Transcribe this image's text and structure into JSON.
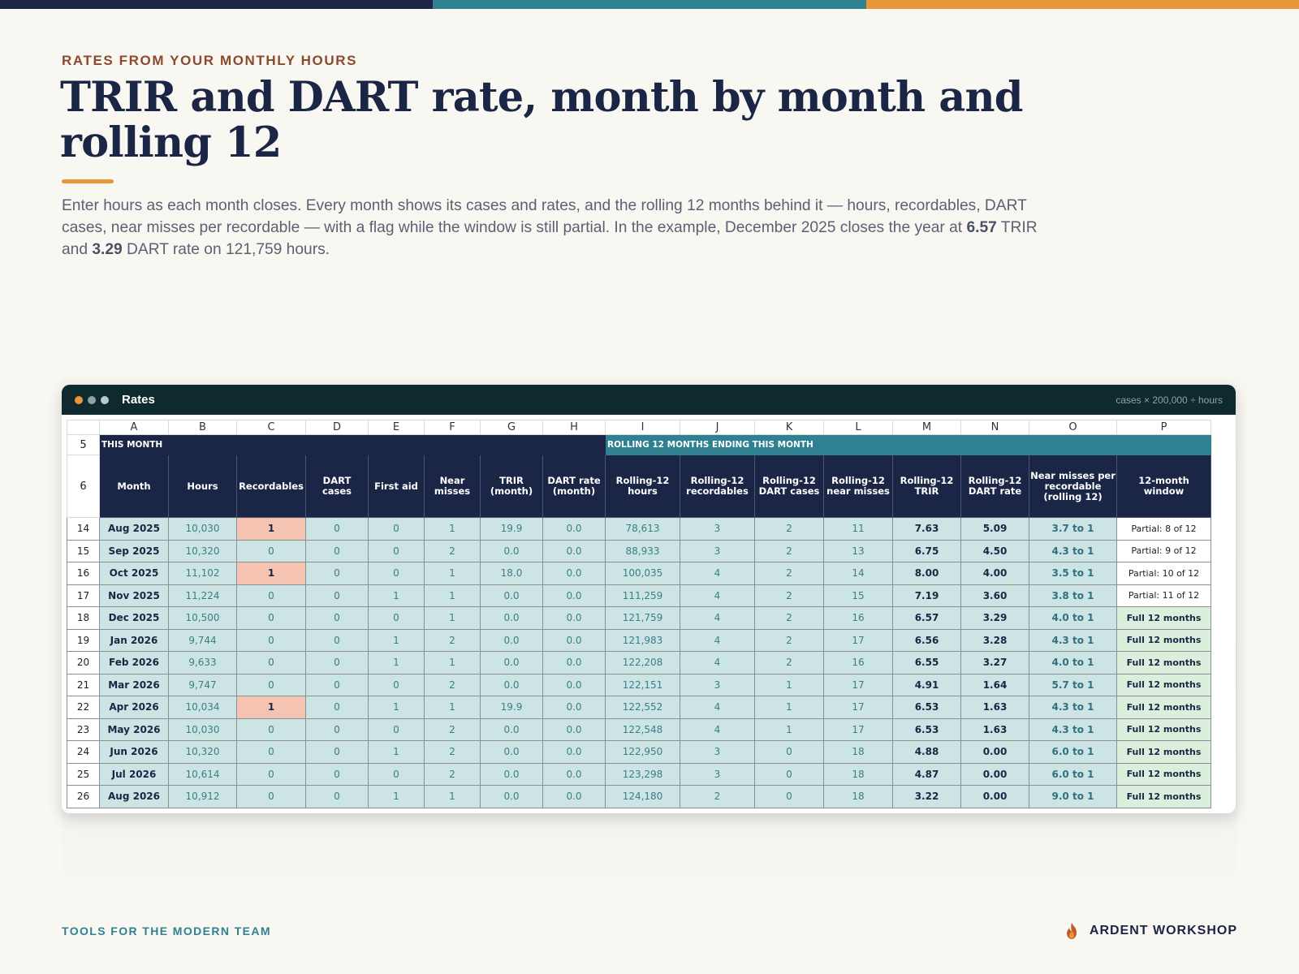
{
  "colors": {
    "navy": "#1b2545",
    "teal": "#2f8191",
    "orange": "#e9953a",
    "rust": "#8b4a2e"
  },
  "header": {
    "eyebrow": "RATES FROM YOUR MONTHLY HOURS",
    "title": "TRIR and DART rate, month by month and rolling 12",
    "intro_1": "Enter hours as each month closes. Every month shows its cases and rates, and the rolling 12 months behind it — hours, recordables, DART cases, near misses per recordable — with a flag while the window is still partial. In the example, December 2025 closes the year at ",
    "intro_trir": "6.57",
    "intro_2": " TRIR and ",
    "intro_dart": "3.29",
    "intro_3": " DART rate on 121,759 hours."
  },
  "window": {
    "title": "Rates",
    "formula": "cases × 200,000 ÷ hours"
  },
  "sheet": {
    "columns": [
      "A",
      "B",
      "C",
      "D",
      "E",
      "F",
      "G",
      "H",
      "I",
      "J",
      "K",
      "L",
      "M",
      "N",
      "O",
      "P"
    ],
    "section_row_num": "5",
    "section_a": "THIS MONTH",
    "section_b": "ROLLING 12 MONTHS ENDING THIS MONTH",
    "header_row_num": "6",
    "headers": [
      "Month",
      "Hours",
      "Recordables",
      "DART cases",
      "First aid",
      "Near misses",
      "TRIR (month)",
      "DART rate (month)",
      "Rolling-12 hours",
      "Rolling-12 recordables",
      "Rolling-12 DART cases",
      "Rolling-12 near misses",
      "Rolling-12 TRIR",
      "Rolling-12 DART rate",
      "Near misses per recordable (rolling 12)",
      "12-month window"
    ],
    "rows": [
      [
        "14",
        "Aug 2025",
        "10,030",
        "1",
        "0",
        "0",
        "1",
        "19.9",
        "0.0",
        "78,613",
        "3",
        "2",
        "11",
        "7.63",
        "5.09",
        "3.7 to 1",
        "Partial: 8 of 12"
      ],
      [
        "15",
        "Sep 2025",
        "10,320",
        "0",
        "0",
        "0",
        "2",
        "0.0",
        "0.0",
        "88,933",
        "3",
        "2",
        "13",
        "6.75",
        "4.50",
        "4.3 to 1",
        "Partial: 9 of 12"
      ],
      [
        "16",
        "Oct 2025",
        "11,102",
        "1",
        "0",
        "0",
        "1",
        "18.0",
        "0.0",
        "100,035",
        "4",
        "2",
        "14",
        "8.00",
        "4.00",
        "3.5 to 1",
        "Partial: 10 of 12"
      ],
      [
        "17",
        "Nov 2025",
        "11,224",
        "0",
        "0",
        "1",
        "1",
        "0.0",
        "0.0",
        "111,259",
        "4",
        "2",
        "15",
        "7.19",
        "3.60",
        "3.8 to 1",
        "Partial: 11 of 12"
      ],
      [
        "18",
        "Dec 2025",
        "10,500",
        "0",
        "0",
        "0",
        "1",
        "0.0",
        "0.0",
        "121,759",
        "4",
        "2",
        "16",
        "6.57",
        "3.29",
        "4.0 to 1",
        "Full 12 months"
      ],
      [
        "19",
        "Jan 2026",
        "9,744",
        "0",
        "0",
        "1",
        "2",
        "0.0",
        "0.0",
        "121,983",
        "4",
        "2",
        "17",
        "6.56",
        "3.28",
        "4.3 to 1",
        "Full 12 months"
      ],
      [
        "20",
        "Feb 2026",
        "9,633",
        "0",
        "0",
        "1",
        "1",
        "0.0",
        "0.0",
        "122,208",
        "4",
        "2",
        "16",
        "6.55",
        "3.27",
        "4.0 to 1",
        "Full 12 months"
      ],
      [
        "21",
        "Mar 2026",
        "9,747",
        "0",
        "0",
        "0",
        "2",
        "0.0",
        "0.0",
        "122,151",
        "3",
        "1",
        "17",
        "4.91",
        "1.64",
        "5.7 to 1",
        "Full 12 months"
      ],
      [
        "22",
        "Apr 2026",
        "10,034",
        "1",
        "0",
        "1",
        "1",
        "19.9",
        "0.0",
        "122,552",
        "4",
        "1",
        "17",
        "6.53",
        "1.63",
        "4.3 to 1",
        "Full 12 months"
      ],
      [
        "23",
        "May 2026",
        "10,030",
        "0",
        "0",
        "0",
        "2",
        "0.0",
        "0.0",
        "122,548",
        "4",
        "1",
        "17",
        "6.53",
        "1.63",
        "4.3 to 1",
        "Full 12 months"
      ],
      [
        "24",
        "Jun 2026",
        "10,320",
        "0",
        "0",
        "1",
        "2",
        "0.0",
        "0.0",
        "122,950",
        "3",
        "0",
        "18",
        "4.88",
        "0.00",
        "6.0 to 1",
        "Full 12 months"
      ],
      [
        "25",
        "Jul 2026",
        "10,614",
        "0",
        "0",
        "0",
        "2",
        "0.0",
        "0.0",
        "123,298",
        "3",
        "0",
        "18",
        "4.87",
        "0.00",
        "6.0 to 1",
        "Full 12 months"
      ],
      [
        "26",
        "Aug 2026",
        "10,912",
        "0",
        "0",
        "1",
        "1",
        "0.0",
        "0.0",
        "124,180",
        "2",
        "0",
        "18",
        "3.22",
        "0.00",
        "9.0 to 1",
        "Full 12 months"
      ]
    ]
  },
  "footer": {
    "left": "TOOLS FOR THE MODERN TEAM",
    "brand": "ARDENT WORKSHOP",
    "brand_icon": "flame-icon"
  }
}
